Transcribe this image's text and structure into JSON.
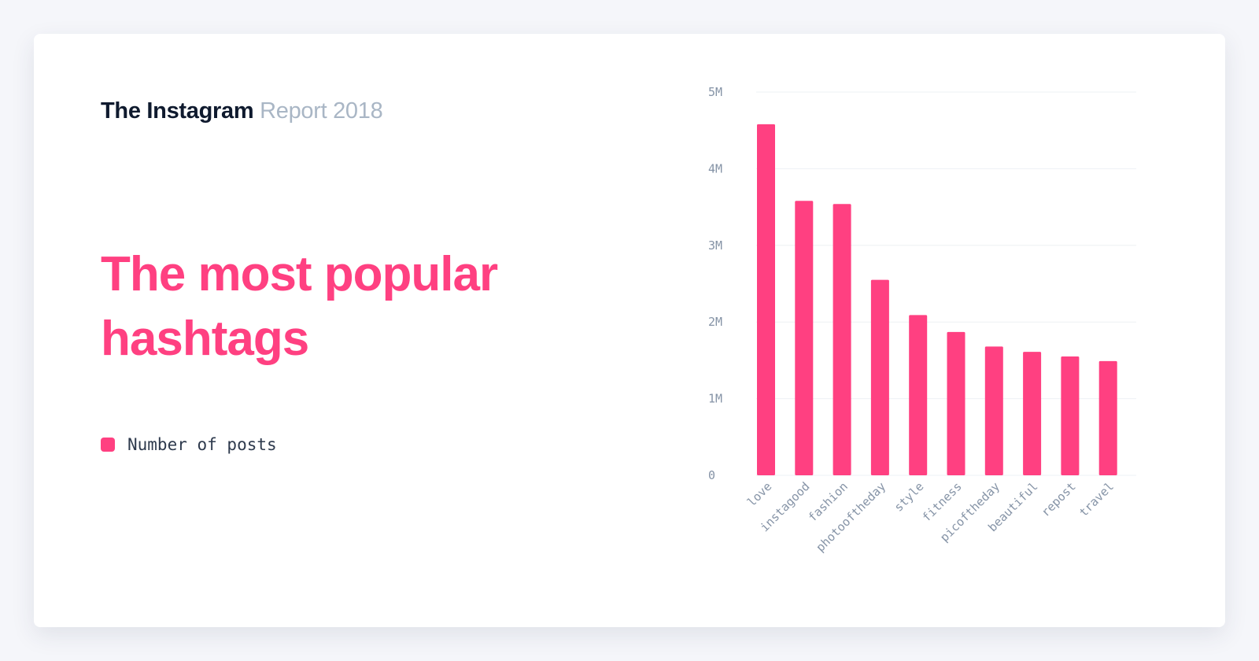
{
  "header": {
    "brand": "The Instagram",
    "subtitle": "Report 2018"
  },
  "headline": "The most popular hashtags",
  "legend": {
    "label": "Number of posts"
  },
  "colors": {
    "accent": "#ff4081",
    "brand_text": "#0f1a2e",
    "subtitle_text": "#a9b6c5",
    "axis_text": "#8593a6",
    "grid": "#eef0f4"
  },
  "chart_data": {
    "type": "bar",
    "categories": [
      "love",
      "instagood",
      "fashion",
      "photooftheday",
      "style",
      "fitness",
      "picoftheday",
      "beautiful",
      "repost",
      "travel"
    ],
    "series": [
      {
        "name": "Number of posts",
        "values": [
          4.58,
          3.58,
          3.54,
          2.55,
          2.09,
          1.87,
          1.68,
          1.61,
          1.55,
          1.49
        ]
      }
    ],
    "value_unit": "millions of posts",
    "ylim": [
      0,
      5
    ],
    "yticks": [
      0,
      1,
      2,
      3,
      4,
      5
    ],
    "ytick_labels": [
      "0",
      "1M",
      "2M",
      "3M",
      "4M",
      "5M"
    ],
    "grid": true,
    "legend_position": "left"
  }
}
